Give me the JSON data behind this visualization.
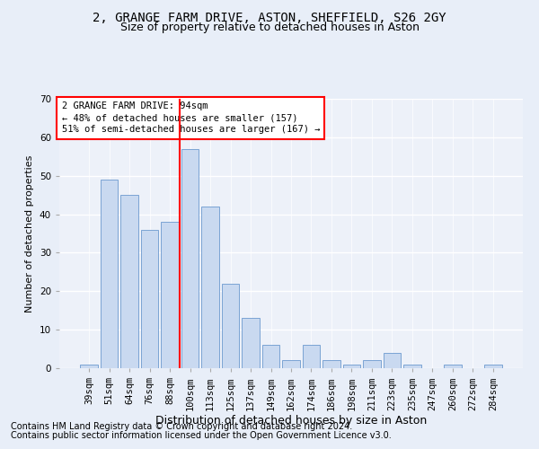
{
  "title1": "2, GRANGE FARM DRIVE, ASTON, SHEFFIELD, S26 2GY",
  "title2": "Size of property relative to detached houses in Aston",
  "xlabel": "Distribution of detached houses by size in Aston",
  "ylabel": "Number of detached properties",
  "categories": [
    "39sqm",
    "51sqm",
    "64sqm",
    "76sqm",
    "88sqm",
    "100sqm",
    "113sqm",
    "125sqm",
    "137sqm",
    "149sqm",
    "162sqm",
    "174sqm",
    "186sqm",
    "198sqm",
    "211sqm",
    "223sqm",
    "235sqm",
    "247sqm",
    "260sqm",
    "272sqm",
    "284sqm"
  ],
  "values": [
    1,
    49,
    45,
    36,
    38,
    57,
    42,
    22,
    13,
    6,
    2,
    6,
    2,
    1,
    2,
    4,
    1,
    0,
    1,
    0,
    1
  ],
  "bar_color": "#c9d9f0",
  "bar_edge_color": "#7ba3d4",
  "annotation_line1": "2 GRANGE FARM DRIVE: 94sqm",
  "annotation_line2": "← 48% of detached houses are smaller (157)",
  "annotation_line3": "51% of semi-detached houses are larger (167) →",
  "annotation_box_color": "white",
  "annotation_box_edge_color": "red",
  "vline_color": "red",
  "ylim": [
    0,
    70
  ],
  "yticks": [
    0,
    10,
    20,
    30,
    40,
    50,
    60,
    70
  ],
  "footer1": "Contains HM Land Registry data © Crown copyright and database right 2024.",
  "footer2": "Contains public sector information licensed under the Open Government Licence v3.0.",
  "bg_color": "#e8eef8",
  "plot_bg_color": "#edf1f9",
  "grid_color": "white",
  "title1_fontsize": 10,
  "title2_fontsize": 9,
  "xlabel_fontsize": 9,
  "ylabel_fontsize": 8,
  "tick_fontsize": 7.5,
  "ann_fontsize": 7.5,
  "footer_fontsize": 7
}
